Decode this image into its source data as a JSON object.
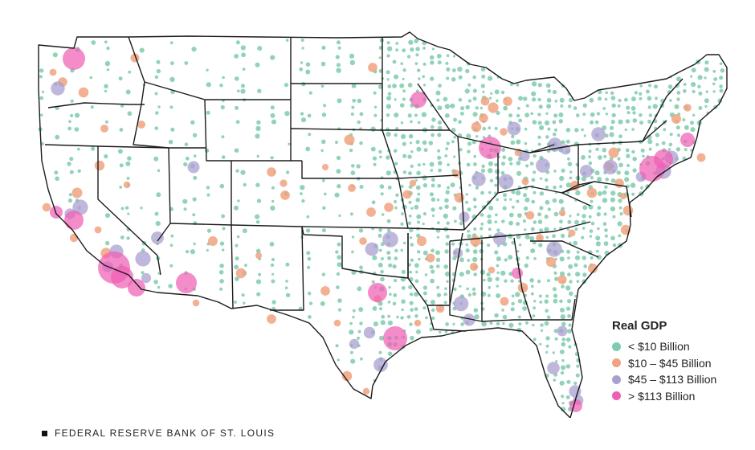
{
  "legend": {
    "title": "Real GDP",
    "items": [
      {
        "label": "< $10 Billion",
        "color": "#7ecbad"
      },
      {
        "label": "$10 – $45 Billion",
        "color": "#f0a37f"
      },
      {
        "label": "$45 – $113 Billion",
        "color": "#ab9fd0"
      },
      {
        "label": "> $113 Billion",
        "color": "#ee5fb4"
      }
    ]
  },
  "footer": {
    "source": "FEDERAL RESERVE BANK OF ST. LOUIS"
  }
}
